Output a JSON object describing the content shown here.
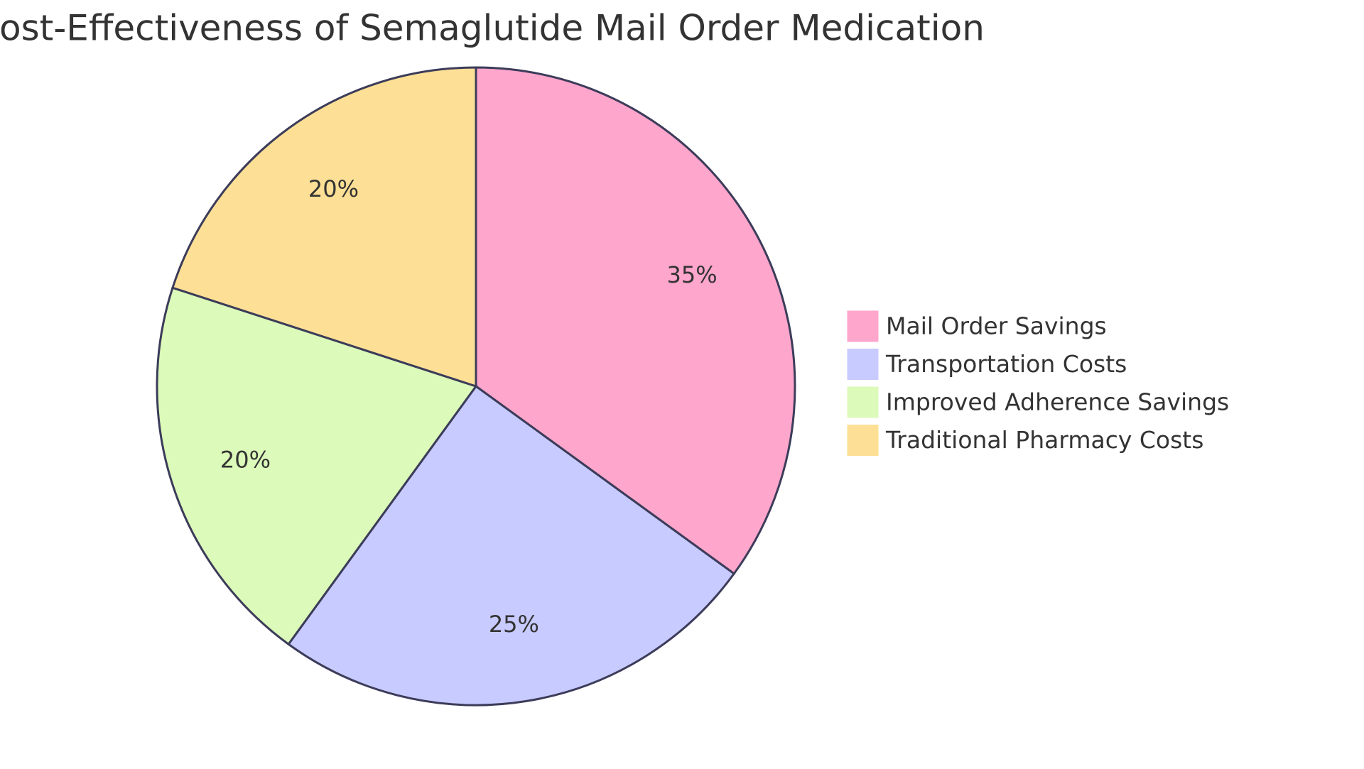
{
  "chart_data": {
    "type": "pie",
    "title": "Cost-Effectiveness of Semaglutide Mail Order Medication",
    "categories": [
      "Mail Order Savings",
      "Transportation Costs",
      "Improved Adherence Savings",
      "Traditional Pharmacy Costs"
    ],
    "values": [
      35,
      25,
      20,
      20
    ],
    "value_labels": [
      "35%",
      "25%",
      "20%",
      "20%"
    ],
    "colors": [
      "#ffa6cc",
      "#c8cbff",
      "#dcfab9",
      "#fde096"
    ],
    "legend": "right"
  }
}
